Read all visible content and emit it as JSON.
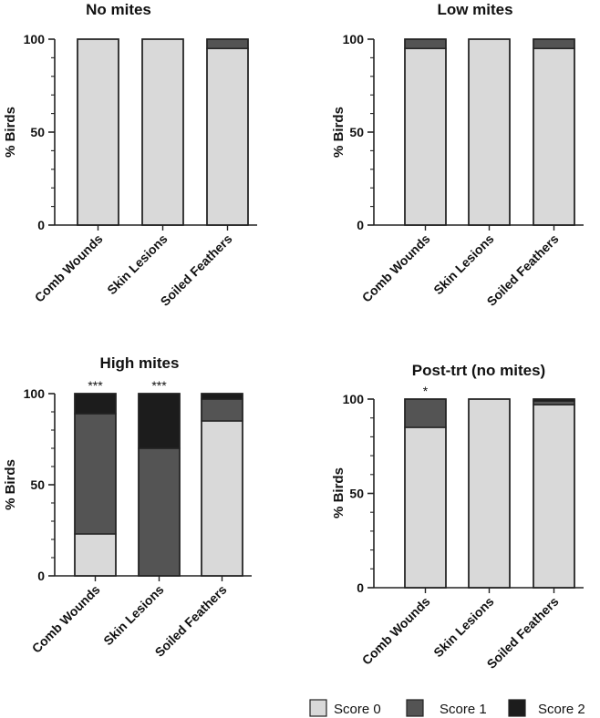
{
  "chart_data": [
    {
      "type": "bar",
      "stacked": true,
      "title": "No mites",
      "ylabel": "% Birds",
      "ylim": [
        0,
        100
      ],
      "yticks": [
        "0",
        "50",
        "100"
      ],
      "categories": [
        "Comb Wounds",
        "Skin Lesions",
        "Soiled Feathers"
      ],
      "series": [
        {
          "name": "Score 0",
          "values": [
            100,
            100,
            95
          ]
        },
        {
          "name": "Score 1",
          "values": [
            0,
            0,
            5
          ]
        },
        {
          "name": "Score 2",
          "values": [
            0,
            0,
            0
          ]
        }
      ],
      "annotations": [
        "",
        "",
        ""
      ]
    },
    {
      "type": "bar",
      "stacked": true,
      "title": "Low mites",
      "ylabel": "% Birds",
      "ylim": [
        0,
        100
      ],
      "yticks": [
        "0",
        "50",
        "100"
      ],
      "categories": [
        "Comb Wounds",
        "Skin Lesions",
        "Soiled Feathers"
      ],
      "series": [
        {
          "name": "Score 0",
          "values": [
            95,
            100,
            95
          ]
        },
        {
          "name": "Score 1",
          "values": [
            5,
            0,
            5
          ]
        },
        {
          "name": "Score 2",
          "values": [
            0,
            0,
            0
          ]
        }
      ],
      "annotations": [
        "",
        "",
        ""
      ]
    },
    {
      "type": "bar",
      "stacked": true,
      "title": "High mites",
      "ylabel": "% Birds",
      "ylim": [
        0,
        100
      ],
      "yticks": [
        "0",
        "50",
        "100"
      ],
      "categories": [
        "Comb Wounds",
        "Skin Lesions",
        "Soiled Feathers"
      ],
      "series": [
        {
          "name": "Score 0",
          "values": [
            23,
            0,
            85
          ]
        },
        {
          "name": "Score 1",
          "values": [
            66,
            70,
            12
          ]
        },
        {
          "name": "Score 2",
          "values": [
            11,
            30,
            3
          ]
        }
      ],
      "annotations": [
        "***",
        "***",
        ""
      ]
    },
    {
      "type": "bar",
      "stacked": true,
      "title": "Post-trt (no mites)",
      "ylabel": "% Birds",
      "ylim": [
        0,
        100
      ],
      "yticks": [
        "0",
        "50",
        "100"
      ],
      "categories": [
        "Comb Wounds",
        "Skin Lesions",
        "Soiled Feathers"
      ],
      "series": [
        {
          "name": "Score 0",
          "values": [
            85,
            100,
            97
          ]
        },
        {
          "name": "Score 1",
          "values": [
            15,
            0,
            2
          ]
        },
        {
          "name": "Score 2",
          "values": [
            0,
            0,
            1
          ]
        }
      ],
      "annotations": [
        "*",
        "",
        ""
      ]
    }
  ],
  "legend": {
    "placement": "bottom-right",
    "items": [
      {
        "label": "Score 0",
        "color": "#d9d9d9"
      },
      {
        "label": "Score 1",
        "color": "#545454"
      },
      {
        "label": "Score 2",
        "color": "#1c1c1c"
      }
    ]
  }
}
